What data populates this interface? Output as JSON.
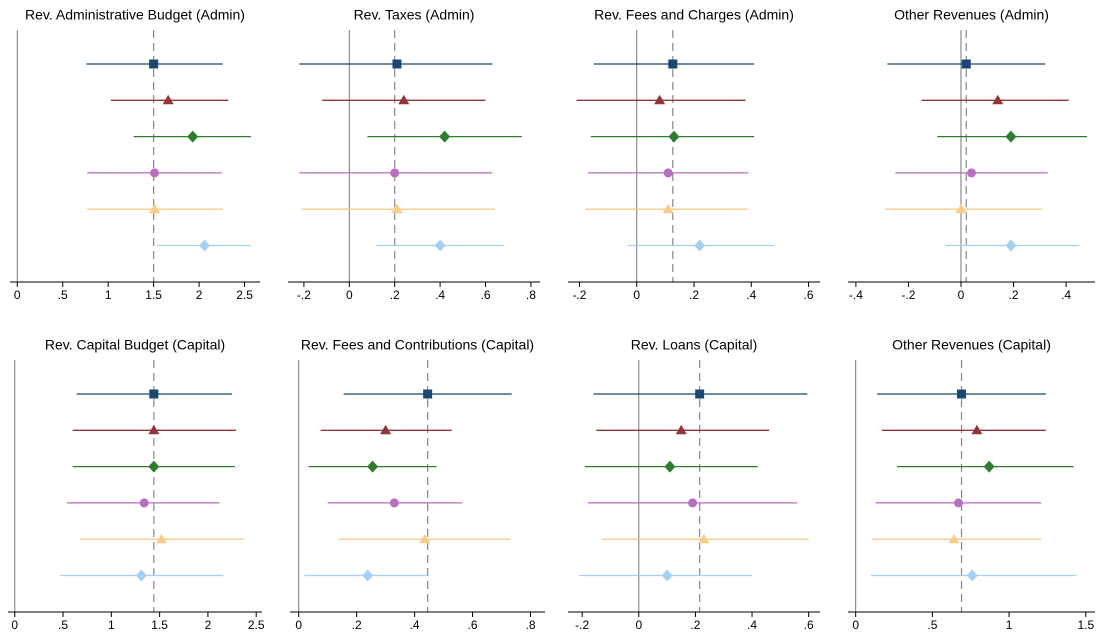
{
  "chart_data": [
    {
      "type": "errorbar",
      "title": "Rev. Administrative Budget (Admin)",
      "xlim": [
        -0.08,
        2.67
      ],
      "xticks": [
        0,
        {
          "value": 0.5,
          "label": ".5"
        },
        1,
        1.5,
        2,
        2.5
      ],
      "refline": 1.5,
      "values": [
        1.5,
        1.66,
        1.93,
        1.51,
        1.51,
        2.06
      ],
      "lower": [
        0.76,
        1.03,
        1.28,
        0.77,
        0.77,
        1.54
      ],
      "upper": [
        2.26,
        2.32,
        2.57,
        2.25,
        2.26,
        2.57
      ],
      "colors": [
        "#1a476f",
        "#90353b",
        "#2e7d2e",
        "#b76fbf",
        "#f5cc8a",
        "#a6cff5"
      ],
      "markers": [
        "square",
        "triangle",
        "diamond",
        "circle",
        "triangle",
        "diamond"
      ]
    },
    {
      "type": "errorbar",
      "title": "Rev. Taxes (Admin)",
      "xlim": [
        -0.27,
        0.84
      ],
      "xticks": [
        {
          "value": -0.2,
          "label": "-.2"
        },
        0,
        {
          "value": 0.2,
          "label": ".2"
        },
        {
          "value": 0.4,
          "label": ".4"
        },
        {
          "value": 0.6,
          "label": ".6"
        },
        {
          "value": 0.8,
          "label": ".8"
        }
      ],
      "refline": 0.2,
      "values": [
        0.21,
        0.24,
        0.42,
        0.2,
        0.21,
        0.4
      ],
      "lower": [
        -0.22,
        -0.12,
        0.08,
        -0.22,
        -0.21,
        0.12
      ],
      "upper": [
        0.63,
        0.6,
        0.76,
        0.63,
        0.64,
        0.68
      ],
      "colors": [
        "#1a476f",
        "#90353b",
        "#2e7d2e",
        "#b76fbf",
        "#f5cc8a",
        "#a6cff5"
      ],
      "markers": [
        "square",
        "triangle",
        "diamond",
        "circle",
        "triangle",
        "diamond"
      ]
    },
    {
      "type": "errorbar",
      "title": "Rev. Fees and Charges (Admin)",
      "xlim": [
        -0.24,
        0.64
      ],
      "xticks": [
        {
          "value": -0.2,
          "label": "-.2"
        },
        0,
        {
          "value": 0.2,
          "label": ".2"
        },
        {
          "value": 0.4,
          "label": ".4"
        },
        {
          "value": 0.6,
          "label": ".6"
        }
      ],
      "refline": 0.126,
      "values": [
        0.126,
        0.08,
        0.13,
        0.11,
        0.11,
        0.22
      ],
      "lower": [
        -0.15,
        -0.21,
        -0.16,
        -0.17,
        -0.18,
        -0.03
      ],
      "upper": [
        0.41,
        0.38,
        0.41,
        0.39,
        0.39,
        0.48
      ],
      "colors": [
        "#1a476f",
        "#90353b",
        "#2e7d2e",
        "#b76fbf",
        "#f5cc8a",
        "#a6cff5"
      ],
      "markers": [
        "square",
        "triangle",
        "diamond",
        "circle",
        "triangle",
        "diamond"
      ]
    },
    {
      "type": "errorbar",
      "title": "Other Revenues (Admin)",
      "xlim": [
        -0.43,
        0.51
      ],
      "xticks": [
        {
          "value": -0.4,
          "label": "-.4"
        },
        {
          "value": -0.2,
          "label": "-.2"
        },
        0,
        {
          "value": 0.2,
          "label": ".2"
        },
        {
          "value": 0.4,
          "label": ".4"
        }
      ],
      "refline": 0.02,
      "values": [
        0.02,
        0.14,
        0.19,
        0.04,
        0.0,
        0.19
      ],
      "lower": [
        -0.28,
        -0.15,
        -0.09,
        -0.25,
        -0.29,
        -0.06
      ],
      "upper": [
        0.32,
        0.41,
        0.48,
        0.33,
        0.31,
        0.45
      ],
      "colors": [
        "#1a476f",
        "#90353b",
        "#2e7d2e",
        "#b76fbf",
        "#f5cc8a",
        "#a6cff5"
      ],
      "markers": [
        "square",
        "triangle",
        "diamond",
        "circle",
        "triangle",
        "diamond"
      ]
    },
    {
      "type": "errorbar",
      "title": "Rev. Capital Budget (Capital)",
      "xlim": [
        -0.07,
        2.56
      ],
      "xticks": [
        0,
        {
          "value": 0.5,
          "label": ".5"
        },
        1,
        1.5,
        2,
        2.5
      ],
      "refline": 1.44,
      "values": [
        1.44,
        1.44,
        1.44,
        1.34,
        1.52,
        1.31
      ],
      "lower": [
        0.64,
        0.6,
        0.6,
        0.54,
        0.68,
        0.47
      ],
      "upper": [
        2.25,
        2.29,
        2.28,
        2.12,
        2.37,
        2.16
      ],
      "colors": [
        "#1a476f",
        "#90353b",
        "#2e7d2e",
        "#b76fbf",
        "#f5cc8a",
        "#a6cff5"
      ],
      "markers": [
        "square",
        "triangle",
        "diamond",
        "circle",
        "triangle",
        "diamond"
      ]
    },
    {
      "type": "errorbar",
      "title": "Rev. Fees and Contributions (Capital)",
      "xlim": [
        -0.03,
        0.85
      ],
      "xticks": [
        0,
        {
          "value": 0.2,
          "label": ".2"
        },
        {
          "value": 0.4,
          "label": ".4"
        },
        {
          "value": 0.6,
          "label": ".6"
        },
        {
          "value": 0.8,
          "label": ".8"
        }
      ],
      "refline": 0.445,
      "values": [
        0.445,
        0.3,
        0.255,
        0.33,
        0.435,
        0.238
      ],
      "lower": [
        0.155,
        0.076,
        0.034,
        0.1,
        0.138,
        0.02
      ],
      "upper": [
        0.735,
        0.528,
        0.476,
        0.565,
        0.731,
        0.45
      ],
      "colors": [
        "#1a476f",
        "#90353b",
        "#2e7d2e",
        "#b76fbf",
        "#f5cc8a",
        "#a6cff5"
      ],
      "markers": [
        "square",
        "triangle",
        "diamond",
        "circle",
        "triangle",
        "diamond"
      ]
    },
    {
      "type": "errorbar",
      "title": "Rev. Loans (Capital)",
      "xlim": [
        -0.25,
        0.64
      ],
      "xticks": [
        {
          "value": -0.2,
          "label": "-.2"
        },
        0,
        {
          "value": 0.2,
          "label": ".2"
        },
        {
          "value": 0.4,
          "label": ".4"
        },
        {
          "value": 0.6,
          "label": ".6"
        }
      ],
      "refline": 0.215,
      "values": [
        0.215,
        0.15,
        0.11,
        0.19,
        0.23,
        0.1
      ],
      "lower": [
        -0.16,
        -0.15,
        -0.19,
        -0.18,
        -0.13,
        -0.21
      ],
      "upper": [
        0.595,
        0.46,
        0.42,
        0.56,
        0.6,
        0.4
      ],
      "colors": [
        "#1a476f",
        "#90353b",
        "#2e7d2e",
        "#b76fbf",
        "#f5cc8a",
        "#a6cff5"
      ],
      "markers": [
        "square",
        "triangle",
        "diamond",
        "circle",
        "triangle",
        "diamond"
      ]
    },
    {
      "type": "errorbar",
      "title": "Other Revenues (Capital)",
      "xlim": [
        -0.05,
        1.56
      ],
      "xticks": [
        0,
        {
          "value": 0.5,
          "label": ".5"
        },
        1,
        1.5
      ],
      "refline": 0.69,
      "values": [
        0.69,
        0.79,
        0.87,
        0.67,
        0.64,
        0.76
      ],
      "lower": [
        0.14,
        0.17,
        0.27,
        0.13,
        0.11,
        0.1
      ],
      "upper": [
        1.24,
        1.24,
        1.42,
        1.21,
        1.21,
        1.44
      ],
      "colors": [
        "#1a476f",
        "#90353b",
        "#2e7d2e",
        "#b76fbf",
        "#f5cc8a",
        "#a6cff5"
      ],
      "markers": [
        "square",
        "triangle",
        "diamond",
        "circle",
        "triangle",
        "diamond"
      ]
    }
  ]
}
